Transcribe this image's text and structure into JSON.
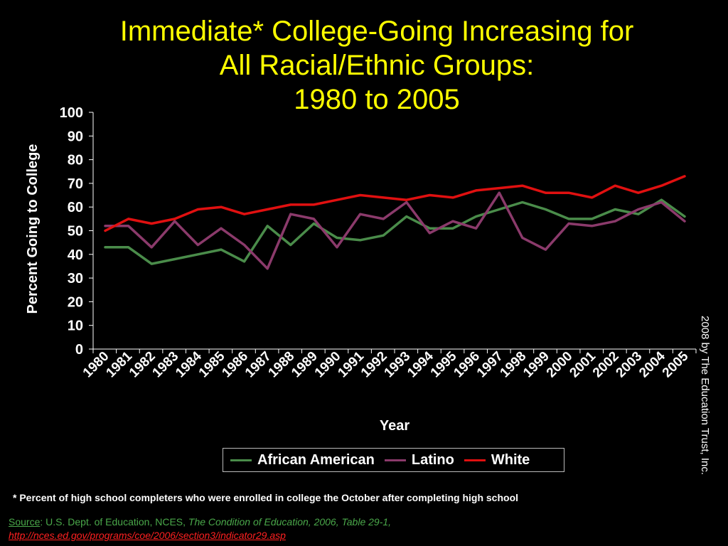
{
  "title": {
    "line1": "Immediate* College-Going Increasing for",
    "line2": "All Racial/Ethnic Groups:",
    "line3": "1980 to 2005"
  },
  "side_credit": "2008 by The Education Trust, Inc.",
  "footnote": "* Percent of high school completers who were enrolled in college the October after completing high school",
  "source": {
    "label": "Source",
    "text": ":  U.S. Dept. of Education, NCES, ",
    "publication": "The Condition of Education, 2006, Table 29-1,",
    "url": "http://nces.ed.gov/programs/coe/2006/section3/indicator29.asp"
  },
  "legend": {
    "items": [
      {
        "label": "African American",
        "color": "#4a8c4a"
      },
      {
        "label": "Latino",
        "color": "#8b3a6b"
      },
      {
        "label": "White",
        "color": "#e01010"
      }
    ]
  },
  "chart_data": {
    "type": "line",
    "title": "Immediate* College-Going Increasing for All Racial/Ethnic Groups: 1980 to 2005",
    "xlabel": "Year",
    "ylabel": "Percent Going to College",
    "ylim": [
      0,
      100
    ],
    "yticks": [
      0,
      10,
      20,
      30,
      40,
      50,
      60,
      70,
      80,
      90,
      100
    ],
    "categories": [
      "1980",
      "1981",
      "1982",
      "1983",
      "1984",
      "1985",
      "1986",
      "1987",
      "1988",
      "1989",
      "1990",
      "1991",
      "1992",
      "1993",
      "1994",
      "1995",
      "1996",
      "1997",
      "1998",
      "1999",
      "2000",
      "2001",
      "2002",
      "2003",
      "2004",
      "2005"
    ],
    "grid": false,
    "legend_position": "bottom",
    "series": [
      {
        "name": "African American",
        "color": "#4a8c4a",
        "values": [
          43,
          43,
          36,
          38,
          40,
          42,
          37,
          52,
          44,
          53,
          47,
          46,
          48,
          56,
          51,
          51,
          56,
          59,
          62,
          59,
          55,
          55,
          59,
          57,
          63,
          56
        ]
      },
      {
        "name": "Latino",
        "color": "#8b3a6b",
        "values": [
          52,
          52,
          43,
          54,
          44,
          51,
          44,
          34,
          57,
          55,
          43,
          57,
          55,
          62,
          49,
          54,
          51,
          66,
          47,
          42,
          53,
          52,
          54,
          59,
          62,
          54
        ]
      },
      {
        "name": "White",
        "color": "#e01010",
        "values": [
          50,
          55,
          53,
          55,
          59,
          60,
          57,
          59,
          61,
          61,
          63,
          65,
          64,
          63,
          65,
          64,
          67,
          68,
          69,
          66,
          66,
          64,
          69,
          66,
          69,
          73
        ]
      }
    ]
  }
}
